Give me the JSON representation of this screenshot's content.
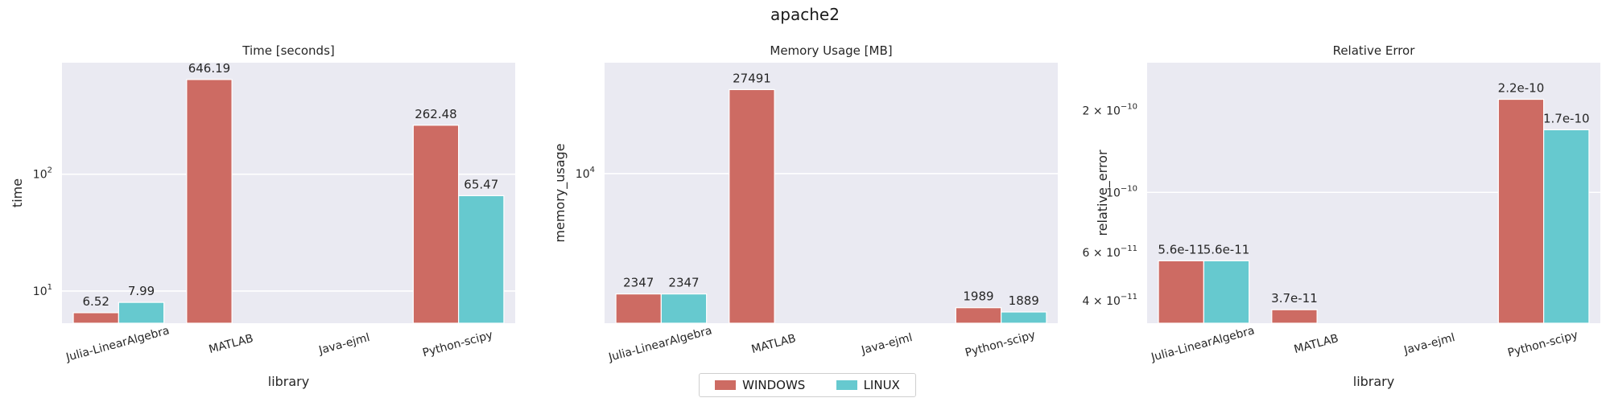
{
  "figure": {
    "title": "apache2"
  },
  "legend": {
    "placement": "bottom-center",
    "items": [
      {
        "name": "WINDOWS",
        "color": "#cd6b63"
      },
      {
        "name": "LINUX",
        "color": "#66c9cf"
      }
    ]
  },
  "chart_data": [
    {
      "type": "bar",
      "title": "Time [seconds]",
      "xlabel": "library",
      "ylabel": "time",
      "yscale": "log",
      "ylim": [
        5.3,
        900
      ],
      "yticks": [
        {
          "value": 10,
          "base": "10",
          "exp": "1"
        },
        {
          "value": 100,
          "base": "10",
          "exp": "2"
        }
      ],
      "categories": [
        "Julia-LinearAlgebra",
        "MATLAB",
        "Java-ejml",
        "Python-scipy"
      ],
      "series": [
        {
          "name": "WINDOWS",
          "values": [
            6.52,
            646.19,
            null,
            262.48
          ],
          "labels": [
            "6.52",
            "646.19",
            "",
            "262.48"
          ]
        },
        {
          "name": "LINUX",
          "values": [
            7.99,
            null,
            null,
            65.47
          ],
          "labels": [
            "7.99",
            "",
            "",
            "65.47"
          ]
        }
      ],
      "grid": true
    },
    {
      "type": "bar",
      "title": "Memory Usage [MB]",
      "xlabel": "library",
      "ylabel": "memory_usage",
      "yscale": "log",
      "ylim": [
        1650,
        38000
      ],
      "yticks": [
        {
          "value": 10000,
          "base": "10",
          "exp": "4"
        }
      ],
      "categories": [
        "Julia-LinearAlgebra",
        "MATLAB",
        "Java-ejml",
        "Python-scipy"
      ],
      "series": [
        {
          "name": "WINDOWS",
          "values": [
            2347,
            27491,
            null,
            1989
          ],
          "labels": [
            "2347",
            "27491",
            "",
            "1989"
          ]
        },
        {
          "name": "LINUX",
          "values": [
            2347,
            null,
            null,
            1889
          ],
          "labels": [
            "2347",
            "",
            "",
            "1889"
          ]
        }
      ],
      "grid": true
    },
    {
      "type": "bar",
      "title": "Relative Error",
      "xlabel": "library",
      "ylabel": "relative_error",
      "yscale": "log",
      "ylim": [
        3.3e-11,
        3e-10
      ],
      "yticks": [
        {
          "value": 4e-11,
          "base": "4 × 10",
          "exp": "−11"
        },
        {
          "value": 6e-11,
          "base": "6 × 10",
          "exp": "−11"
        },
        {
          "value": 1e-10,
          "base": "10",
          "exp": "−10"
        },
        {
          "value": 2e-10,
          "base": "2 × 10",
          "exp": "−10"
        }
      ],
      "majorGrid": [
        1e-10
      ],
      "categories": [
        "Julia-LinearAlgebra",
        "MATLAB",
        "Java-ejml",
        "Python-scipy"
      ],
      "series": [
        {
          "name": "WINDOWS",
          "values": [
            5.6e-11,
            3.7e-11,
            null,
            2.2e-10
          ],
          "labels": [
            "5.6e-11",
            "3.7e-11",
            "",
            "2.2e-10"
          ]
        },
        {
          "name": "LINUX",
          "values": [
            5.6e-11,
            null,
            null,
            1.7e-10
          ],
          "labels": [
            "5.6e-11",
            "",
            "",
            "1.7e-10"
          ]
        }
      ],
      "grid": true
    }
  ]
}
